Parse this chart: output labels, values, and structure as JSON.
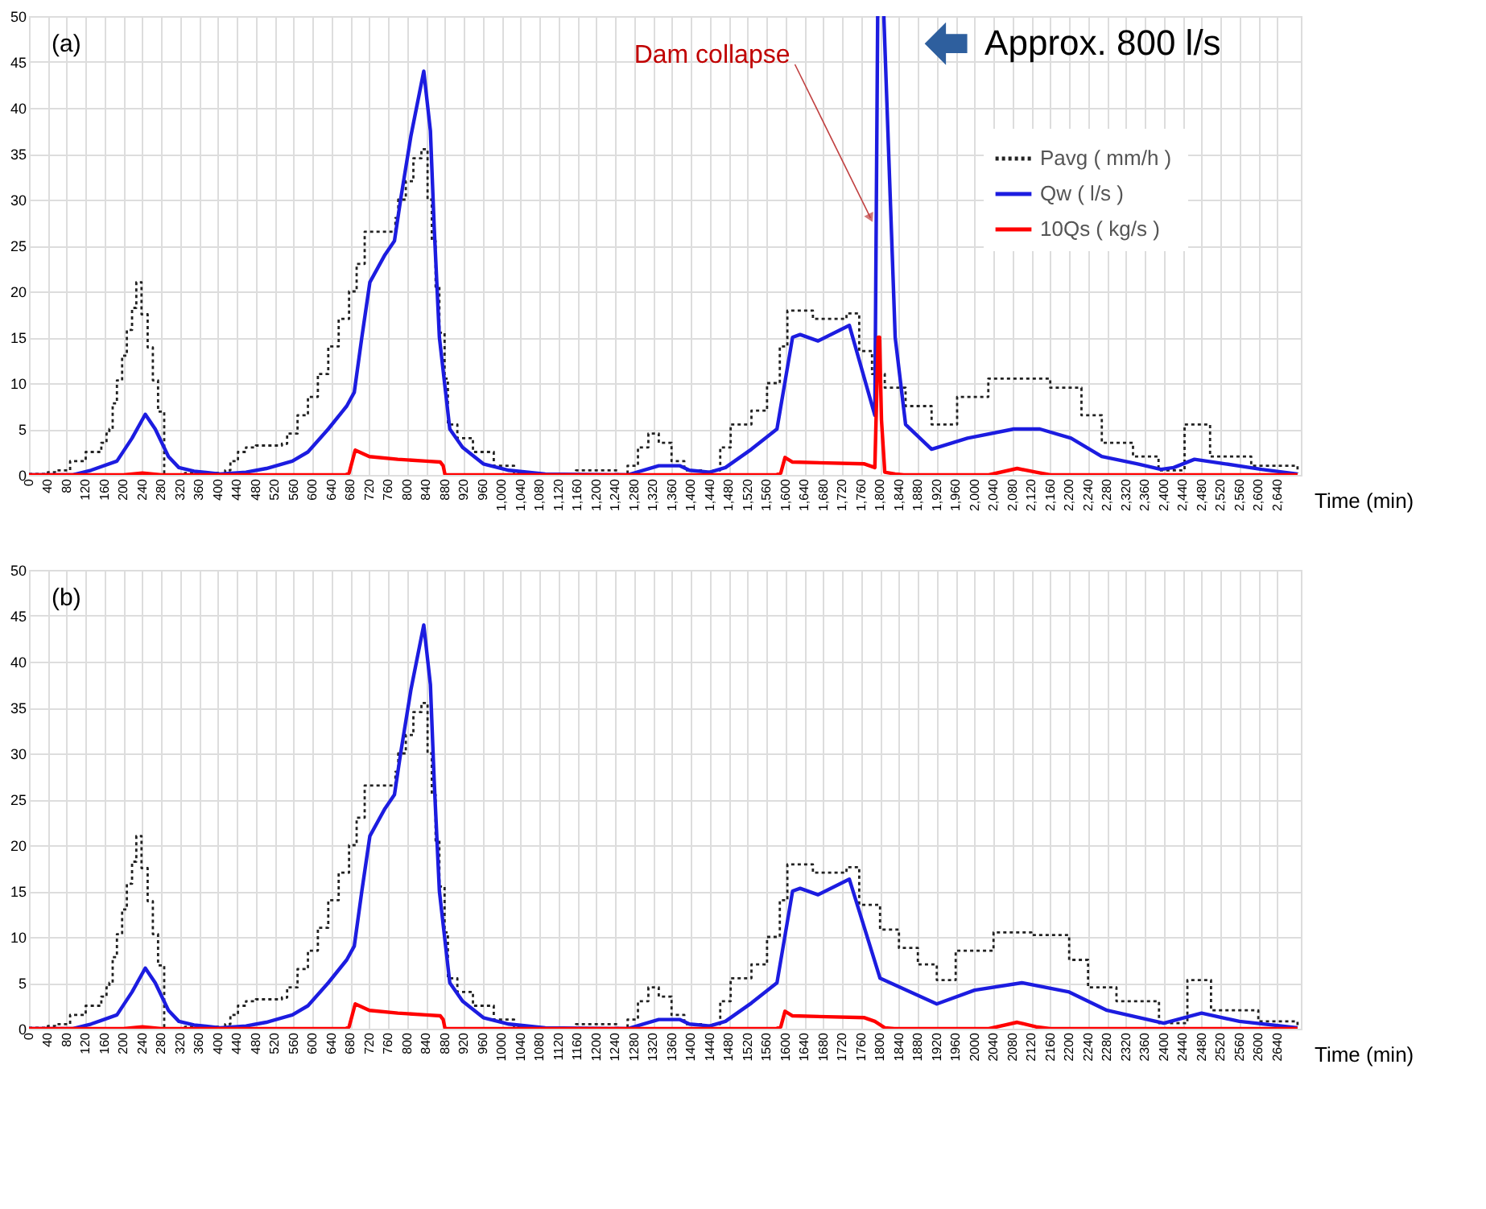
{
  "chart_data": [
    {
      "type": "line",
      "xlabel": "Time (min)",
      "xlim": [
        0,
        2690
      ],
      "ylim": [
        0,
        50
      ],
      "yticks": [
        0,
        5,
        10,
        15,
        20,
        25,
        30,
        35,
        40,
        45,
        50
      ],
      "grid": true,
      "legend": "top right",
      "xticks": [
        0,
        40,
        80,
        120,
        160,
        200,
        240,
        280,
        320,
        360,
        400,
        440,
        480,
        520,
        560,
        600,
        640,
        680,
        720,
        760,
        800,
        840,
        880,
        920,
        960,
        {
          "value": 1000,
          "label": "1,000"
        },
        {
          "value": 1040,
          "label": "1,040"
        },
        {
          "value": 1080,
          "label": "1,080"
        },
        {
          "value": 1120,
          "label": "1,120"
        },
        {
          "value": 1160,
          "label": "1,160"
        },
        {
          "value": 1200,
          "label": "1,200"
        },
        {
          "value": 1240,
          "label": "1,240"
        },
        {
          "value": 1280,
          "label": "1,280"
        },
        {
          "value": 1320,
          "label": "1,320"
        },
        {
          "value": 1360,
          "label": "1,360"
        },
        {
          "value": 1400,
          "label": "1,400"
        },
        {
          "value": 1440,
          "label": "1,440"
        },
        {
          "value": 1480,
          "label": "1,480"
        },
        {
          "value": 1520,
          "label": "1,520"
        },
        {
          "value": 1560,
          "label": "1,560"
        },
        {
          "value": 1600,
          "label": "1,600"
        },
        {
          "value": 1640,
          "label": "1,640"
        },
        {
          "value": 1680,
          "label": "1,680"
        },
        {
          "value": 1720,
          "label": "1,720"
        },
        {
          "value": 1760,
          "label": "1,760"
        },
        {
          "value": 1800,
          "label": "1,800"
        },
        {
          "value": 1840,
          "label": "1,840"
        },
        {
          "value": 1880,
          "label": "1,880"
        },
        {
          "value": 1920,
          "label": "1,920"
        },
        {
          "value": 1960,
          "label": "1,960"
        },
        {
          "value": 2000,
          "label": "2,000"
        },
        {
          "value": 2040,
          "label": "2,040"
        },
        {
          "value": 2080,
          "label": "2,080"
        },
        {
          "value": 2120,
          "label": "2,120"
        },
        {
          "value": 2160,
          "label": "2,160"
        },
        {
          "value": 2200,
          "label": "2,200"
        },
        {
          "value": 2240,
          "label": "2,240"
        },
        {
          "value": 2280,
          "label": "2,280"
        },
        {
          "value": 2320,
          "label": "2,320"
        },
        {
          "value": 2360,
          "label": "2,360"
        },
        {
          "value": 2400,
          "label": "2,400"
        },
        {
          "value": 2440,
          "label": "2,440"
        },
        {
          "value": 2480,
          "label": "2,480"
        },
        {
          "value": 2520,
          "label": "2,520"
        },
        {
          "value": 2560,
          "label": "2,560"
        },
        {
          "value": 2600,
          "label": "2,600"
        },
        {
          "value": 2640,
          "label": "2,640"
        }
      ],
      "annotations": [
        "(a)",
        {
          "text": "Dam collapse",
          "x": 1780,
          "y": 28
        },
        {
          "text": "Approx. 800 l/s",
          "x": 1810,
          "y": 47
        }
      ],
      "series": [
        {
          "name": "Pavg  ( mm/h )",
          "type": "step",
          "line_style": "dotted",
          "color": "#222222",
          "x": [
            0,
            40,
            55,
            87,
            120,
            153,
            164,
            170,
            177,
            186,
            197,
            207,
            218,
            227,
            238,
            251,
            262,
            273,
            286,
            330,
            400,
            415,
            426,
            442,
            459,
            480,
            535,
            546,
            568,
            590,
            611,
            633,
            655,
            677,
            693,
            710,
            775,
            781,
            797,
            813,
            830,
            843,
            852,
            860,
            868,
            879,
            886,
            906,
            939,
            983,
            1026,
            1060,
            1157,
            1245,
            1266,
            1288,
            1310,
            1332,
            1359,
            1386,
            1430,
            1440,
            1462,
            1484,
            1528,
            1561,
            1588,
            1604,
            1658,
            1729,
            1756,
            1783,
            1810,
            1854,
            1909,
            1963,
            2029,
            2095,
            2160,
            2226,
            2269,
            2335,
            2389,
            2444,
            2498,
            2585,
            2683
          ],
          "values": [
            0.1,
            0.3,
            0.5,
            1.5,
            2.5,
            3.5,
            4.5,
            5,
            7.8,
            10.3,
            13,
            15.8,
            18.2,
            21,
            17.5,
            13.9,
            10.3,
            6.9,
            0,
            0.2,
            0,
            0.5,
            1.5,
            2.5,
            3,
            3.2,
            3.4,
            4.5,
            6.5,
            8.5,
            11,
            14,
            17,
            20,
            23,
            26.5,
            28,
            30,
            32,
            34.5,
            35.5,
            30,
            25.5,
            20.5,
            15.5,
            10.5,
            5.5,
            4,
            2.5,
            1,
            0.2,
            0,
            0.5,
            0,
            1,
            3,
            4.5,
            3.5,
            1.5,
            0.5,
            0.2,
            0.5,
            3,
            5.5,
            7,
            10,
            14,
            17.9,
            17,
            17.6,
            13.5,
            11,
            9.5,
            7.5,
            5.5,
            8.5,
            10.5,
            10.5,
            9.5,
            6.5,
            3.5,
            2,
            0.5,
            5.5,
            2,
            1,
            0.2
          ]
        },
        {
          "name": "Qw  ( l/s )",
          "type": "line",
          "line_style": "solid",
          "color": "#1c1ce0",
          "x": [
            0,
            93,
            131,
            186,
            218,
            246,
            267,
            295,
            317,
            349,
            404,
            459,
            502,
            557,
            590,
            633,
            672,
            688,
            704,
            721,
            753,
            773,
            786,
            808,
            835,
            849,
            857,
            868,
            890,
            917,
            961,
            1015,
            1092,
            1266,
            1332,
            1376,
            1397,
            1440,
            1473,
            1528,
            1582,
            1615,
            1631,
            1669,
            1735,
            1789,
            1795,
            1800,
            1808,
            1832,
            1854,
            1909,
            1985,
            2083,
            2138,
            2204,
            2269,
            2345,
            2394,
            2421,
            2465,
            2531,
            2607,
            2683
          ],
          "values": [
            0,
            0,
            0.5,
            1.5,
            4,
            6.6,
            5,
            2,
            0.8,
            0.4,
            0.1,
            0.3,
            0.7,
            1.5,
            2.5,
            5,
            7.5,
            9,
            15,
            21,
            24,
            25.5,
            30,
            37,
            44,
            37.5,
            27,
            15,
            5,
            3,
            1.2,
            0.5,
            0.1,
            0,
            1,
            1,
            0.5,
            0.3,
            0.8,
            2.8,
            5,
            15,
            15.3,
            14.6,
            16.3,
            6.5,
            50,
            null,
            50,
            15,
            5.5,
            2.8,
            4,
            5,
            5,
            4,
            2,
            1.2,
            0.6,
            0.8,
            1.7,
            1.2,
            0.6,
            0.1
          ]
        },
        {
          "name": "10Qs  ( kg/s )",
          "type": "line",
          "line_style": "solid",
          "color": "#ff0000",
          "x": [
            0,
            200,
            240,
            280,
            670,
            677,
            690,
            720,
            780,
            840,
            870,
            876,
            880,
            1580,
            1590,
            1599,
            1615,
            1767,
            1789,
            1796,
            1799,
            1803,
            1810,
            1832,
            1850,
            2030,
            2090,
            2130,
            2160,
            2683
          ],
          "values": [
            0,
            0,
            0.2,
            0,
            0,
            0.2,
            2.7,
            2,
            1.7,
            1.5,
            1.4,
            1,
            0,
            0,
            0.2,
            1.9,
            1.4,
            1.2,
            0.8,
            15,
            15,
            6,
            0.3,
            0.1,
            0,
            0,
            0.7,
            0.3,
            0,
            0
          ]
        }
      ]
    },
    {
      "type": "line",
      "xlabel": "Time (min)",
      "xlim": [
        0,
        2690
      ],
      "ylim": [
        0,
        50
      ],
      "yticks": [
        0,
        5,
        10,
        15,
        20,
        25,
        30,
        35,
        40,
        45,
        50
      ],
      "grid": true,
      "legend": "top right",
      "xticks": [
        0,
        40,
        80,
        120,
        160,
        200,
        240,
        280,
        320,
        360,
        400,
        440,
        480,
        520,
        560,
        600,
        640,
        680,
        720,
        760,
        800,
        840,
        880,
        920,
        960,
        1000,
        1040,
        1080,
        1120,
        1160,
        1200,
        1240,
        1280,
        1320,
        1360,
        1400,
        1440,
        1480,
        1520,
        1560,
        1600,
        1640,
        1680,
        1720,
        1760,
        1800,
        1840,
        1880,
        1920,
        1960,
        2000,
        2040,
        2080,
        2120,
        2160,
        2200,
        2240,
        2280,
        2320,
        2360,
        2400,
        2440,
        2480,
        2520,
        2560,
        2600,
        2640
      ],
      "annotations": [
        "(b)"
      ],
      "series": [
        {
          "name": "Pavg  ( mm/h )",
          "type": "step",
          "line_style": "dotted",
          "color": "#222222",
          "x": [
            0,
            40,
            55,
            87,
            120,
            153,
            164,
            170,
            177,
            186,
            197,
            207,
            218,
            227,
            238,
            251,
            262,
            273,
            286,
            330,
            400,
            415,
            426,
            442,
            459,
            480,
            535,
            546,
            568,
            590,
            611,
            633,
            655,
            677,
            693,
            710,
            775,
            781,
            797,
            813,
            830,
            843,
            852,
            860,
            868,
            879,
            886,
            906,
            939,
            983,
            1026,
            1060,
            1157,
            1245,
            1266,
            1288,
            1310,
            1332,
            1359,
            1386,
            1430,
            1440,
            1462,
            1484,
            1528,
            1561,
            1588,
            1604,
            1658,
            1729,
            1756,
            1800,
            1840,
            1880,
            1920,
            1960,
            2040,
            2120,
            2200,
            2240,
            2300,
            2390,
            2450,
            2500,
            2600,
            2683
          ],
          "values": [
            0.1,
            0.3,
            0.5,
            1.5,
            2.5,
            3.5,
            4.5,
            5,
            7.8,
            10.3,
            13,
            15.8,
            18.2,
            21,
            17.5,
            13.9,
            10.3,
            6.9,
            0,
            0.2,
            0,
            0.5,
            1.5,
            2.5,
            3,
            3.2,
            3.4,
            4.5,
            6.5,
            8.5,
            11,
            14,
            17,
            20,
            23,
            26.5,
            28,
            30,
            32,
            34.5,
            35.5,
            30,
            25.5,
            20.5,
            15.5,
            10.5,
            5.5,
            4,
            2.5,
            1,
            0.2,
            0,
            0.5,
            0,
            1,
            3,
            4.5,
            3.5,
            1.5,
            0.5,
            0.2,
            0.5,
            3,
            5.5,
            7,
            10,
            14,
            17.9,
            17,
            17.6,
            13.5,
            10.8,
            8.8,
            7,
            5.3,
            8.5,
            10.5,
            10.2,
            7.5,
            4.5,
            3,
            0.6,
            5.3,
            2,
            0.8,
            0.1
          ]
        },
        {
          "name": "Qw  ( l/s )",
          "type": "line",
          "line_style": "solid",
          "color": "#1c1ce0",
          "x": [
            0,
            93,
            131,
            186,
            218,
            246,
            267,
            295,
            317,
            349,
            404,
            459,
            502,
            557,
            590,
            633,
            672,
            688,
            704,
            721,
            753,
            773,
            786,
            808,
            835,
            849,
            857,
            868,
            890,
            917,
            961,
            1015,
            1092,
            1266,
            1332,
            1376,
            1397,
            1440,
            1473,
            1528,
            1582,
            1615,
            1631,
            1669,
            1735,
            1800,
            1920,
            2000,
            2100,
            2200,
            2280,
            2400,
            2480,
            2560,
            2683
          ],
          "values": [
            0,
            0,
            0.5,
            1.5,
            4,
            6.6,
            5,
            2,
            0.8,
            0.4,
            0.1,
            0.3,
            0.7,
            1.5,
            2.5,
            5,
            7.5,
            9,
            15,
            21,
            24,
            25.5,
            30,
            37,
            44,
            37.5,
            27,
            15,
            5,
            3,
            1.2,
            0.5,
            0.1,
            0,
            1,
            1,
            0.5,
            0.3,
            0.8,
            2.8,
            5,
            15,
            15.3,
            14.6,
            16.3,
            5.5,
            2.7,
            4.2,
            5,
            4,
            2,
            0.6,
            1.7,
            0.8,
            0.1
          ]
        },
        {
          "name": "10Qs  ( kg/s )",
          "type": "line",
          "line_style": "solid",
          "color": "#ff0000",
          "x": [
            0,
            200,
            240,
            280,
            670,
            677,
            690,
            720,
            780,
            840,
            870,
            876,
            880,
            1580,
            1590,
            1599,
            1615,
            1767,
            1789,
            1810,
            1830,
            2030,
            2090,
            2130,
            2160,
            2683
          ],
          "values": [
            0,
            0,
            0.2,
            0,
            0,
            0.2,
            2.7,
            2,
            1.7,
            1.5,
            1.4,
            1,
            0,
            0,
            0.2,
            1.9,
            1.4,
            1.2,
            0.8,
            0.1,
            0,
            0,
            0.7,
            0.2,
            0,
            0
          ]
        }
      ]
    }
  ]
}
